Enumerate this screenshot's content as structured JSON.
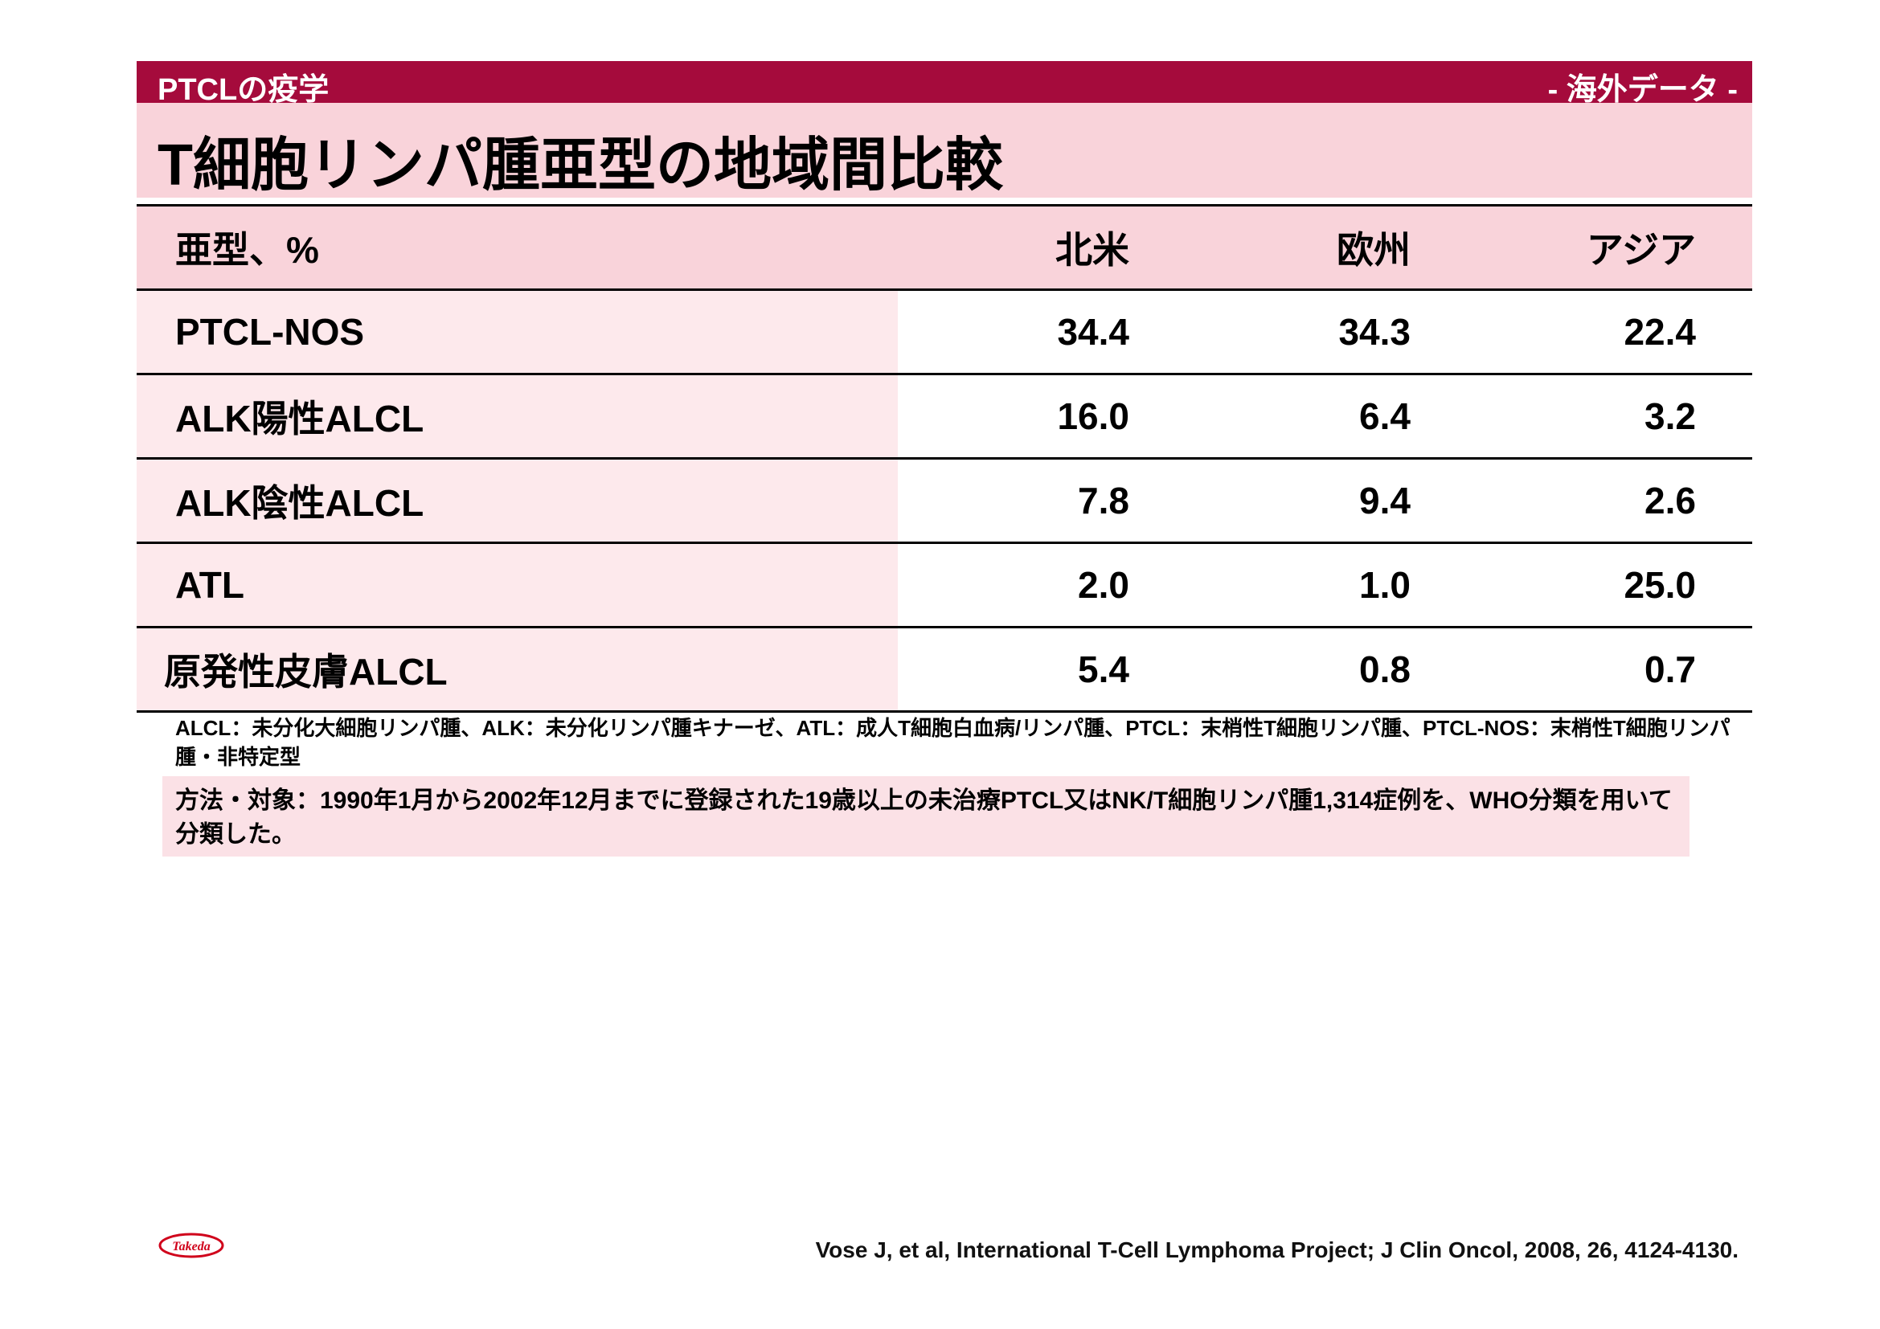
{
  "header": {
    "section_label": "PTCLの疫学",
    "badge": "- 海外データ -",
    "title": "T細胞リンパ腫亜型の地域間比較"
  },
  "table": {
    "columns": [
      "亜型、%",
      "北米",
      "欧州",
      "アジア"
    ],
    "rows": [
      {
        "label": "PTCL-NOS",
        "values": [
          "34.4",
          "34.3",
          "22.4"
        ]
      },
      {
        "label": "ALK陽性ALCL",
        "values": [
          "16.0",
          "6.4",
          "3.2"
        ]
      },
      {
        "label": "ALK陰性ALCL",
        "values": [
          "7.8",
          "9.4",
          "2.6"
        ]
      },
      {
        "label": "ATL",
        "values": [
          "2.0",
          "1.0",
          "25.0"
        ]
      },
      {
        "label": "原発性皮膚ALCL",
        "values": [
          "5.4",
          "0.8",
          "0.7"
        ]
      }
    ]
  },
  "footnote": "ALCL：未分化大細胞リンパ腫、ALK：未分化リンパ腫キナーゼ、ATL：成人T細胞白血病/リンパ腫、PTCL：末梢性T細胞リンパ腫、PTCL-NOS：末梢性T細胞リンパ腫・非特定型",
  "method": "方法・対象：1990年1月から2002年12月までに登録された19歳以上の未治療PTCL又はNK/T細胞リンパ腫1,314症例を、WHO分類を用いて分類した。",
  "logo": {
    "text": "Takeda",
    "color": "#d0021b"
  },
  "citation": "Vose J, et al, International T-Cell Lymphoma Project; J Clin Oncol, 2008, 26, 4124-4130."
}
